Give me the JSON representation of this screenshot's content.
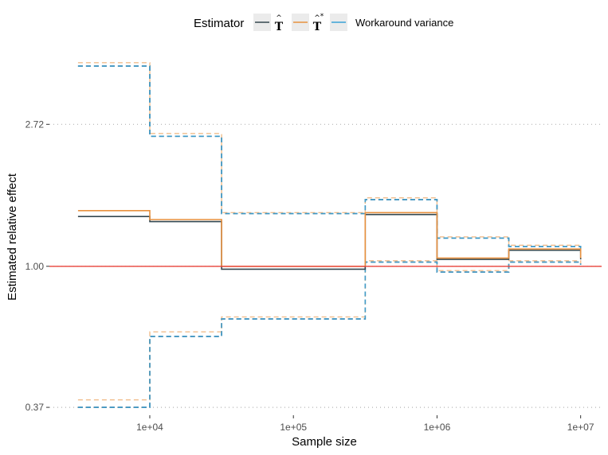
{
  "chart_data": {
    "type": "line",
    "step": true,
    "xlabel": "Sample size",
    "ylabel": "Estimated relative effect",
    "x_scale": "log10",
    "y_scale": "log",
    "x_ticks": [
      10000,
      100000,
      1000000,
      10000000
    ],
    "x_tick_labels": [
      "1e+04",
      "1e+05",
      "1e+06",
      "1e+07"
    ],
    "y_ticks": [
      0.37,
      1.0,
      2.72
    ],
    "y_tick_labels": [
      "0.37",
      "1.00",
      "2.72"
    ],
    "xlim": [
      2000,
      14000000
    ],
    "ylim": [
      0.35,
      4.8
    ],
    "reference_line": {
      "y": 1.0,
      "color": "#e8423a"
    },
    "x": [
      3162,
      10000,
      31623,
      100000,
      316228,
      1000000,
      3162278,
      10000000
    ],
    "legend": {
      "title": "Estimator",
      "position": "top",
      "entries": [
        {
          "key": "t_hat",
          "symbol": "T",
          "hat": "^",
          "star": "",
          "color": "#34474f"
        },
        {
          "key": "t_hat_star",
          "symbol": "T",
          "hat": "^",
          "star": "*",
          "color": "#e8913f"
        },
        {
          "key": "workaround",
          "label": "Workaround variance",
          "color": "#3aa1d6"
        }
      ]
    },
    "series": [
      {
        "key": "t_hat",
        "color": "#34474f",
        "style": "solid",
        "estimate": [
          1.42,
          1.37,
          0.98,
          0.98,
          1.44,
          1.05,
          1.12,
          1.05
        ],
        "lower": [
          0.37,
          0.61,
          0.69,
          0.69,
          1.03,
          0.96,
          1.03,
          1.01
        ],
        "upper": [
          4.1,
          2.5,
          1.45,
          1.45,
          1.6,
          1.22,
          1.15,
          1.1
        ]
      },
      {
        "key": "t_hat_star",
        "color": "#e8913f",
        "style": "solid",
        "estimate": [
          1.48,
          1.39,
          1.0,
          1.0,
          1.46,
          1.06,
          1.13,
          1.06
        ],
        "lower": [
          0.39,
          0.63,
          0.7,
          0.7,
          1.04,
          0.97,
          1.04,
          1.01
        ],
        "upper": [
          4.2,
          2.55,
          1.46,
          1.46,
          1.62,
          1.23,
          1.16,
          1.1
        ]
      },
      {
        "key": "workaround",
        "color": "#3aa1d6",
        "style": "dashed",
        "estimate": [],
        "lower": [
          0.37,
          0.61,
          0.69,
          0.69,
          1.03,
          0.96,
          1.03,
          1.01
        ],
        "upper": [
          4.1,
          2.5,
          1.45,
          1.45,
          1.6,
          1.22,
          1.15,
          1.1
        ]
      }
    ]
  }
}
